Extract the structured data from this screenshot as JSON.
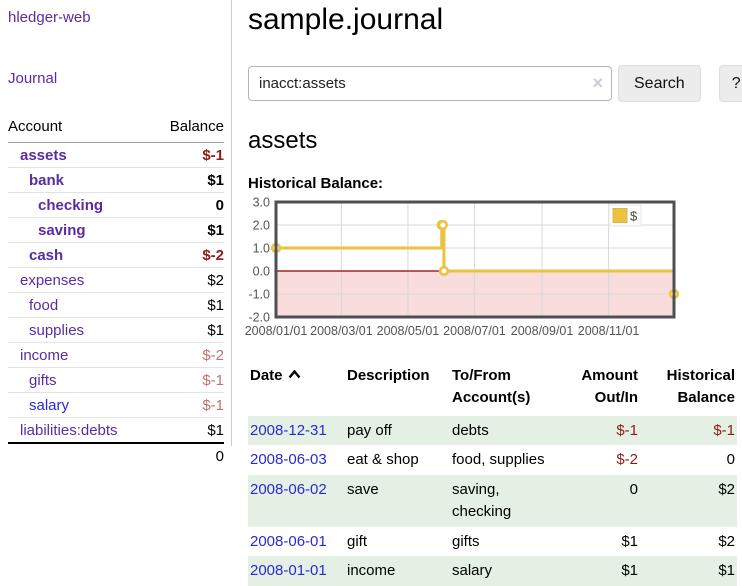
{
  "sidebar": {
    "brand": "hledger-web",
    "nav_journal": "Journal",
    "accounts_table": {
      "headers": {
        "account": "Account",
        "balance": "Balance"
      },
      "rows": [
        {
          "account": "assets",
          "level": 1,
          "bold": true,
          "link_color": "purple",
          "balance": "$-1",
          "balance_class": "neg"
        },
        {
          "account": "bank",
          "level": 2,
          "bold": true,
          "link_color": "purple",
          "balance": "$1",
          "balance_class": ""
        },
        {
          "account": "checking",
          "level": 3,
          "bold": true,
          "link_color": "purple",
          "balance": "0",
          "balance_class": ""
        },
        {
          "account": "saving",
          "level": 3,
          "bold": true,
          "link_color": "purple",
          "balance": "$1",
          "balance_class": ""
        },
        {
          "account": "cash",
          "level": 2,
          "bold": true,
          "link_color": "purple",
          "balance": "$-2",
          "balance_class": "neg"
        },
        {
          "account": "expenses",
          "level": 1,
          "bold": false,
          "link_color": "purple",
          "balance": "$2",
          "balance_class": ""
        },
        {
          "account": "food",
          "level": 2,
          "bold": false,
          "link_color": "purple",
          "balance": "$1",
          "balance_class": ""
        },
        {
          "account": "supplies",
          "level": 2,
          "bold": false,
          "link_color": "purple",
          "balance": "$1",
          "balance_class": ""
        },
        {
          "account": "income",
          "level": 1,
          "bold": false,
          "link_color": "purple",
          "balance": "$-2",
          "balance_class": "rose"
        },
        {
          "account": "gifts",
          "level": 2,
          "bold": false,
          "link_color": "purple",
          "balance": "$-1",
          "balance_class": "rose"
        },
        {
          "account": "salary",
          "level": 2,
          "bold": false,
          "link_color": "blue",
          "balance": "$-1",
          "balance_class": "rose"
        },
        {
          "account": "liabilities:debts",
          "level": 1,
          "bold": false,
          "link_color": "purple",
          "balance": "$1",
          "balance_class": ""
        }
      ],
      "total": "0"
    }
  },
  "main": {
    "title": "sample.journal",
    "search": {
      "value": "inacct:assets",
      "clear_icon": "×",
      "search_button": "Search",
      "help_button": "?"
    },
    "account_heading": "assets",
    "chart_label": "Historical Balance:",
    "register_table": {
      "headers": {
        "date": "Date",
        "description": "Description",
        "accounts": "To/From Account(s)",
        "amount": "Amount Out/In",
        "balance": "Historical Balance"
      },
      "rows": [
        {
          "date": "2008-12-31",
          "description": "pay off",
          "accounts": "debts",
          "amount": "$-1",
          "balance": "$-1"
        },
        {
          "date": "2008-06-03",
          "description": "eat & shop",
          "accounts": "food, supplies",
          "amount": "$-2",
          "balance": "0"
        },
        {
          "date": "2008-06-02",
          "description": "save",
          "accounts": "saving,\nchecking",
          "amount": "0",
          "balance": "$2"
        },
        {
          "date": "2008-06-01",
          "description": "gift",
          "accounts": "gifts",
          "amount": "$1",
          "balance": "$2"
        },
        {
          "date": "2008-01-01",
          "description": "income",
          "accounts": "salary",
          "amount": "$1",
          "balance": "$1"
        }
      ]
    }
  },
  "chart_data": {
    "type": "line",
    "steps": true,
    "title": "Historical Balance",
    "series": [
      {
        "name": "$",
        "color": "#edc240",
        "points": [
          [
            "2008/01/01",
            1
          ],
          [
            "2008/06/01",
            2
          ],
          [
            "2008/06/02",
            2
          ],
          [
            "2008/06/03",
            0
          ],
          [
            "2008/12/31",
            -1
          ]
        ]
      }
    ],
    "xlim": [
      "2008/01/01",
      "2008/12/31"
    ],
    "ylim": [
      -2,
      3
    ],
    "xticks": [
      "2008/01/01",
      "2008/03/01",
      "2008/05/01",
      "2008/07/01",
      "2008/09/01",
      "2008/11/01"
    ],
    "yticks": [
      3.0,
      2.0,
      1.0,
      0.0,
      -1.0,
      -2.0
    ],
    "legend_position": "top-right",
    "grid": true
  },
  "colors": {
    "link_purple": "#5a2ca0",
    "link_blue": "#2a2ad2",
    "negative_dark_red": "#8e1b1b",
    "negative_rose": "#bc7272",
    "row_green": "#e3f0e3",
    "series_yellow": "#edc240",
    "zero_line_red": "#8b0000",
    "negative_region_pink": "#f9dcdc",
    "plot_border_gray": "#4f4f4f",
    "grid_gray": "#d8d8de",
    "tick_text_gray": "#545454"
  }
}
